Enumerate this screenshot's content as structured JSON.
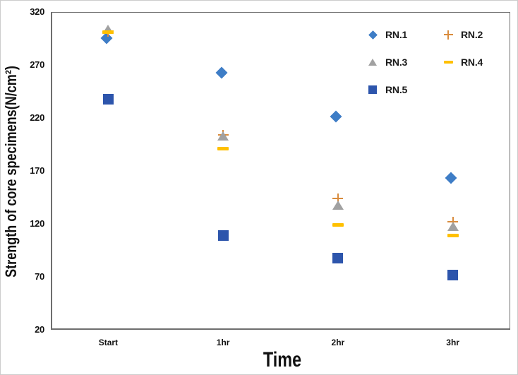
{
  "chart_data": {
    "type": "scatter",
    "title": "",
    "xlabel": "Time",
    "ylabel": "Strength of core specimens(N/cm²)",
    "categories": [
      "Start",
      "1hr",
      "2hr",
      "3hr"
    ],
    "ylim": [
      20,
      320
    ],
    "yticks": [
      20,
      70,
      120,
      170,
      220,
      270,
      320
    ],
    "grid": false,
    "legend_position": "top-right-inside",
    "legend_columns": 2,
    "axis_color": "#6e6e6e",
    "text_color": "#111111",
    "series": [
      {
        "name": "RN.1",
        "marker": "diamond",
        "color": "#3E7DC6",
        "values": [
          294,
          261,
          220,
          162
        ]
      },
      {
        "name": "RN.2",
        "marker": "plus",
        "color": "#D98C3E",
        "values": [
          302,
          214,
          164,
          152
        ]
      },
      {
        "name": "RN.3",
        "marker": "triangle",
        "color": "#A1A1A1",
        "values": [
          304,
          203,
          138,
          118
        ]
      },
      {
        "name": "RN.4",
        "marker": "dash",
        "color": "#FFC000",
        "values": [
          301,
          191,
          119,
          109
        ]
      },
      {
        "name": "RN.5",
        "marker": "square",
        "color": "#2D55AC",
        "values": [
          238,
          109,
          88,
          72
        ]
      }
    ]
  }
}
